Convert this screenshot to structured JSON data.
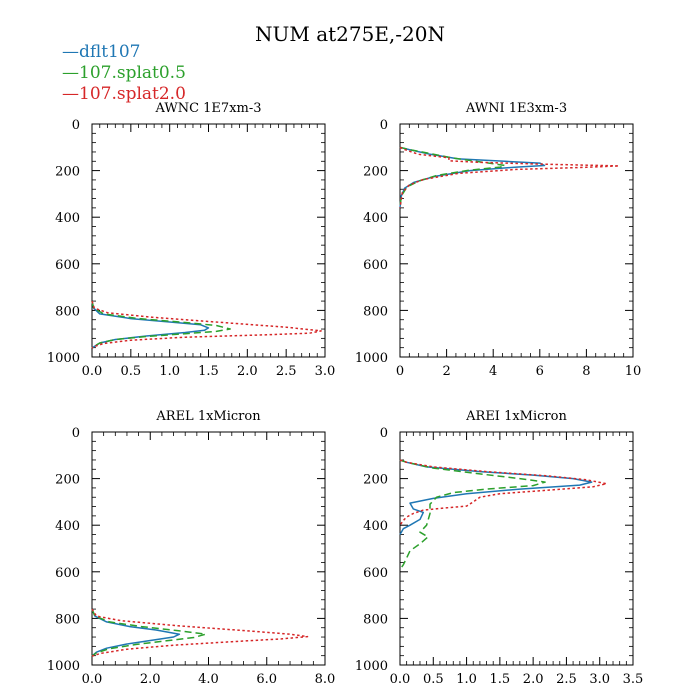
{
  "chart_data": {
    "title": "NUM at275E,-20N",
    "legend": [
      {
        "label": "dflt107",
        "color": "#1f77b4",
        "dash": "solid"
      },
      {
        "label": "107.splat0.5",
        "color": "#2ca02c",
        "dash": "dashed"
      },
      {
        "label": "107.splat2.0",
        "color": "#d62728",
        "dash": "dotted"
      }
    ],
    "panels": [
      {
        "type": "line",
        "title": "AWNC  1E7xm-3",
        "xlim": [
          0,
          3
        ],
        "xticks": [
          0,
          0.5,
          1,
          1.5,
          2,
          2.5,
          3
        ],
        "xticklabels": [
          "0.0",
          "0.5",
          "1.0",
          "1.5",
          "2.0",
          "2.5",
          "3.0"
        ],
        "ylim": [
          1000,
          0
        ],
        "yticks": [
          0,
          200,
          400,
          600,
          800,
          1000
        ],
        "series": [
          {
            "name": "dflt107",
            "points": [
              [
                0,
                760
              ],
              [
                0.02,
                790
              ],
              [
                0.1,
                815
              ],
              [
                0.5,
                835
              ],
              [
                1.0,
                850
              ],
              [
                1.4,
                862
              ],
              [
                1.5,
                875
              ],
              [
                1.45,
                885
              ],
              [
                1.2,
                895
              ],
              [
                0.7,
                910
              ],
              [
                0.3,
                925
              ],
              [
                0.1,
                940
              ],
              [
                0.03,
                955
              ],
              [
                0,
                962
              ]
            ]
          },
          {
            "name": "107.splat0.5",
            "points": [
              [
                0,
                760
              ],
              [
                0.02,
                790
              ],
              [
                0.15,
                815
              ],
              [
                0.6,
                835
              ],
              [
                1.2,
                852
              ],
              [
                1.6,
                865
              ],
              [
                1.78,
                880
              ],
              [
                1.6,
                890
              ],
              [
                1.2,
                900
              ],
              [
                0.7,
                912
              ],
              [
                0.3,
                925
              ],
              [
                0.1,
                940
              ],
              [
                0.02,
                955
              ],
              [
                0,
                962
              ]
            ]
          },
          {
            "name": "107.splat2.0",
            "points": [
              [
                0,
                760
              ],
              [
                0.03,
                790
              ],
              [
                0.2,
                810
              ],
              [
                0.8,
                830
              ],
              [
                1.8,
                855
              ],
              [
                2.5,
                872
              ],
              [
                2.95,
                888
              ],
              [
                2.8,
                898
              ],
              [
                2.2,
                905
              ],
              [
                1.2,
                915
              ],
              [
                0.5,
                928
              ],
              [
                0.15,
                942
              ],
              [
                0.03,
                955
              ],
              [
                0,
                962
              ]
            ]
          }
        ]
      },
      {
        "type": "line",
        "title": "AWNI  1E3xm-3",
        "xlim": [
          0,
          10
        ],
        "xticks": [
          0,
          2,
          4,
          6,
          8,
          10
        ],
        "xticklabels": [
          "0",
          "2",
          "4",
          "6",
          "8",
          "10"
        ],
        "ylim": [
          1000,
          0
        ],
        "yticks": [
          0,
          200,
          400,
          600,
          800,
          1000
        ],
        "series": [
          {
            "name": "dflt107",
            "points": [
              [
                0,
                100
              ],
              [
                0.4,
                110
              ],
              [
                1.3,
                130
              ],
              [
                2.5,
                150
              ],
              [
                4.5,
                160
              ],
              [
                6.0,
                168
              ],
              [
                6.2,
                178
              ],
              [
                5.0,
                185
              ],
              [
                3.0,
                200
              ],
              [
                1.5,
                225
              ],
              [
                0.6,
                250
              ],
              [
                0.2,
                275
              ],
              [
                0.05,
                310
              ],
              [
                0,
                360
              ]
            ]
          },
          {
            "name": "107.splat0.5",
            "points": [
              [
                0,
                100
              ],
              [
                0.4,
                110
              ],
              [
                1.2,
                125
              ],
              [
                2.2,
                145
              ],
              [
                3.6,
                165
              ],
              [
                4.5,
                178
              ],
              [
                4.3,
                185
              ],
              [
                3.0,
                198
              ],
              [
                1.6,
                220
              ],
              [
                0.8,
                245
              ],
              [
                0.3,
                270
              ],
              [
                0.05,
                310
              ],
              [
                0,
                360
              ]
            ]
          },
          {
            "name": "107.splat2.0",
            "points": [
              [
                0,
                100
              ],
              [
                0.2,
                110
              ],
              [
                0.8,
                130
              ],
              [
                2.1,
                145
              ],
              [
                2.1,
                158
              ],
              [
                3.5,
                165
              ],
              [
                6.0,
                172
              ],
              [
                9.4,
                180
              ],
              [
                8.0,
                186
              ],
              [
                5.0,
                195
              ],
              [
                2.5,
                212
              ],
              [
                1.0,
                238
              ],
              [
                0.4,
                262
              ],
              [
                0.1,
                295
              ],
              [
                0,
                360
              ]
            ]
          }
        ]
      },
      {
        "type": "line",
        "title": "AREL  1xMicron",
        "xlim": [
          0,
          8
        ],
        "xticks": [
          0,
          2,
          4,
          6,
          8
        ],
        "xticklabels": [
          "0.0",
          "2.0",
          "4.0",
          "6.0",
          "8.0"
        ],
        "ylim": [
          1000,
          0
        ],
        "yticks": [
          0,
          200,
          400,
          600,
          800,
          1000
        ],
        "series": [
          {
            "name": "dflt107",
            "points": [
              [
                0,
                760
              ],
              [
                0.1,
                790
              ],
              [
                0.5,
                815
              ],
              [
                1.3,
                835
              ],
              [
                2.2,
                850
              ],
              [
                3.0,
                868
              ],
              [
                2.8,
                880
              ],
              [
                2.0,
                895
              ],
              [
                1.2,
                910
              ],
              [
                0.5,
                928
              ],
              [
                0.15,
                945
              ],
              [
                0,
                962
              ]
            ]
          },
          {
            "name": "107.splat0.5",
            "points": [
              [
                0,
                760
              ],
              [
                0.1,
                790
              ],
              [
                0.6,
                815
              ],
              [
                1.7,
                835
              ],
              [
                2.9,
                852
              ],
              [
                3.9,
                868
              ],
              [
                3.5,
                882
              ],
              [
                2.5,
                897
              ],
              [
                1.5,
                912
              ],
              [
                0.6,
                930
              ],
              [
                0.15,
                948
              ],
              [
                0,
                962
              ]
            ]
          },
          {
            "name": "107.splat2.0",
            "points": [
              [
                0,
                760
              ],
              [
                0.15,
                790
              ],
              [
                1.0,
                810
              ],
              [
                3.0,
                832
              ],
              [
                5.5,
                855
              ],
              [
                6.8,
                868
              ],
              [
                7.4,
                878
              ],
              [
                6.5,
                888
              ],
              [
                4.8,
                900
              ],
              [
                2.8,
                915
              ],
              [
                1.2,
                932
              ],
              [
                0.3,
                950
              ],
              [
                0,
                962
              ]
            ]
          }
        ]
      },
      {
        "type": "line",
        "title": "AREI  1xMicron",
        "xlim": [
          0,
          3.5
        ],
        "xticks": [
          0,
          0.5,
          1,
          1.5,
          2,
          2.5,
          3,
          3.5
        ],
        "xticklabels": [
          "0.0",
          "0.5",
          "1.0",
          "1.5",
          "2.0",
          "2.5",
          "3.0",
          "3.5"
        ],
        "ylim": [
          1000,
          0
        ],
        "yticks": [
          0,
          200,
          400,
          600,
          800,
          1000
        ],
        "series": [
          {
            "name": "dflt107",
            "points": [
              [
                0,
                120
              ],
              [
                0.1,
                130
              ],
              [
                0.4,
                150
              ],
              [
                1.2,
                170
              ],
              [
                2.0,
                185
              ],
              [
                2.6,
                200
              ],
              [
                2.88,
                215
              ],
              [
                2.7,
                228
              ],
              [
                1.8,
                245
              ],
              [
                1.0,
                265
              ],
              [
                0.5,
                285
              ],
              [
                0.15,
                305
              ],
              [
                0.2,
                330
              ],
              [
                0.35,
                345
              ],
              [
                0.3,
                375
              ],
              [
                0.15,
                400
              ],
              [
                0.05,
                415
              ],
              [
                0,
                440
              ]
            ]
          },
          {
            "name": "107.splat0.5",
            "points": [
              [
                0,
                120
              ],
              [
                0.1,
                130
              ],
              [
                0.5,
                155
              ],
              [
                1.2,
                180
              ],
              [
                1.8,
                200
              ],
              [
                2.18,
                215
              ],
              [
                2.0,
                230
              ],
              [
                1.3,
                245
              ],
              [
                0.8,
                260
              ],
              [
                0.55,
                280
              ],
              [
                0.45,
                310
              ],
              [
                0.45,
                350
              ],
              [
                0.4,
                400
              ],
              [
                0.3,
                430
              ],
              [
                0.42,
                450
              ],
              [
                0.3,
                480
              ],
              [
                0.15,
                510
              ],
              [
                0.1,
                540
              ],
              [
                0.05,
                570
              ],
              [
                0,
                590
              ]
            ]
          },
          {
            "name": "107.splat2.0",
            "points": [
              [
                0,
                120
              ],
              [
                0.1,
                130
              ],
              [
                0.5,
                150
              ],
              [
                1.3,
                170
              ],
              [
                2.2,
                188
              ],
              [
                2.8,
                205
              ],
              [
                3.1,
                222
              ],
              [
                2.9,
                235
              ],
              [
                2.2,
                250
              ],
              [
                1.5,
                265
              ],
              [
                1.2,
                280
              ],
              [
                1.1,
                300
              ],
              [
                1.0,
                318
              ],
              [
                0.6,
                328
              ],
              [
                0.35,
                335
              ],
              [
                0.2,
                350
              ],
              [
                0.1,
                365
              ],
              [
                0.05,
                380
              ],
              [
                0,
                400
              ]
            ]
          }
        ]
      }
    ]
  }
}
